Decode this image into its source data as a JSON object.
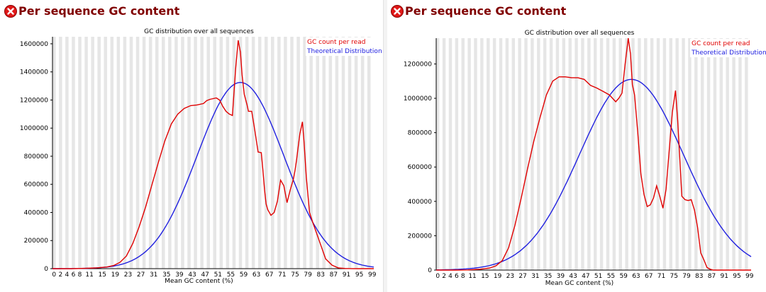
{
  "colors": {
    "heading": "#800000",
    "gc_line": "#e00000",
    "theory_line": "#2020e0",
    "stripe": "#e6e6e6"
  },
  "charts": [
    {
      "heading": "Per sequence GC content",
      "status_icon": "error-icon",
      "chart_data": {
        "type": "line",
        "title": "GC distribution over all sequences",
        "xlabel": "Mean GC content (%)",
        "ylabel": "",
        "xlim": [
          0,
          100
        ],
        "ylim": [
          0,
          1650000
        ],
        "yticks": [
          0,
          200000,
          400000,
          600000,
          800000,
          1000000,
          1200000,
          1400000,
          1600000
        ],
        "xticks": [
          "0",
          "2",
          "4",
          "6",
          "8",
          "11",
          "15",
          "19",
          "23",
          "27",
          "31",
          "35",
          "39",
          "43",
          "47",
          "51",
          "55",
          "59",
          "63",
          "67",
          "71",
          "75",
          "79",
          "83",
          "87",
          "91",
          "95",
          "99"
        ],
        "legend": [
          "GC count per read",
          "Theoretical Distribution"
        ],
        "series": [
          {
            "name": "GC count per read",
            "color": "#e00000",
            "x": [
              0,
              6,
              10,
              14,
              17,
              19,
              21,
              23,
              25,
              27,
              29,
              31,
              33,
              35,
              37,
              39,
              41,
              43,
              45,
              47,
              48,
              49,
              50,
              51,
              52,
              53,
              54,
              55,
              56,
              57,
              57.8,
              58.5,
              59,
              59.7,
              60.5,
              61,
              62,
              63,
              64,
              65,
              65.5,
              66,
              66.5,
              67,
              68,
              69,
              70,
              71,
              72,
              73,
              74,
              75,
              75.5,
              76,
              76.5,
              77,
              77.8,
              78.3,
              79,
              80,
              81,
              83,
              85,
              87,
              89,
              91,
              93,
              95,
              100
            ],
            "y": [
              0,
              0,
              2000,
              6000,
              12000,
              22000,
              45000,
              90000,
              180000,
              300000,
              440000,
              600000,
              760000,
              910000,
              1030000,
              1100000,
              1140000,
              1160000,
              1165000,
              1175000,
              1195000,
              1205000,
              1210000,
              1215000,
              1200000,
              1155000,
              1120000,
              1100000,
              1090000,
              1420000,
              1625000,
              1540000,
              1380000,
              1240000,
              1170000,
              1120000,
              1120000,
              980000,
              830000,
              825000,
              700000,
              560000,
              460000,
              420000,
              380000,
              400000,
              480000,
              630000,
              590000,
              470000,
              560000,
              640000,
              700000,
              780000,
              870000,
              960000,
              1045000,
              900000,
              650000,
              400000,
              330000,
              200000,
              70000,
              25000,
              5000,
              1500,
              500,
              0,
              0
            ]
          },
          {
            "name": "Theoretical Distribution",
            "color": "#2020e0",
            "mean": 58.5,
            "sd": 13.5,
            "peak": 1325000
          }
        ]
      }
    },
    {
      "heading": "Per sequence GC content",
      "status_icon": "error-icon",
      "chart_data": {
        "type": "line",
        "title": "GC distribution over all sequences",
        "xlabel": "Mean GC content (%)",
        "ylabel": "",
        "xlim": [
          0,
          100
        ],
        "ylim": [
          0,
          1350000
        ],
        "yticks": [
          0,
          200000,
          400000,
          600000,
          800000,
          1000000,
          1200000
        ],
        "xticks": [
          "0",
          "2",
          "4",
          "6",
          "8",
          "11",
          "15",
          "19",
          "23",
          "27",
          "31",
          "35",
          "39",
          "43",
          "47",
          "51",
          "55",
          "59",
          "63",
          "67",
          "71",
          "75",
          "79",
          "83",
          "87",
          "91",
          "95",
          "99"
        ],
        "legend": [
          "GC count per read",
          "Theoretical Distribution"
        ],
        "series": [
          {
            "name": "GC count per read",
            "color": "#e00000",
            "x": [
              0,
              6,
              10,
              14,
              17,
              19,
              21,
              23,
              25,
              27,
              29,
              31,
              33,
              35,
              37,
              39,
              41,
              43,
              45,
              47,
              49,
              51,
              53,
              55,
              57,
              58,
              59,
              60,
              61,
              61.7,
              62.3,
              63,
              64,
              65,
              66,
              67,
              68,
              69,
              70,
              71,
              72,
              73,
              74,
              75,
              76,
              76.7,
              77.5,
              78,
              79,
              80,
              81,
              82,
              83,
              84,
              85,
              86,
              87,
              88,
              89,
              90,
              91,
              93,
              95,
              100
            ],
            "y": [
              0,
              0,
              1000,
              5000,
              12000,
              25000,
              55000,
              130000,
              260000,
              420000,
              590000,
              750000,
              890000,
              1020000,
              1100000,
              1125000,
              1125000,
              1120000,
              1120000,
              1110000,
              1075000,
              1060000,
              1040000,
              1020000,
              980000,
              1000000,
              1030000,
              1200000,
              1350000,
              1260000,
              1080000,
              1020000,
              800000,
              560000,
              440000,
              370000,
              380000,
              420000,
              490000,
              430000,
              360000,
              470000,
              700000,
              920000,
              1045000,
              870000,
              600000,
              430000,
              410000,
              405000,
              410000,
              350000,
              250000,
              100000,
              60000,
              15000,
              5000,
              0,
              0,
              0,
              0,
              0,
              0,
              0
            ]
          },
          {
            "name": "Theoretical Distribution",
            "color": "#2020e0",
            "mean": 62.0,
            "sd": 16.5,
            "peak": 1110000
          }
        ]
      }
    }
  ]
}
